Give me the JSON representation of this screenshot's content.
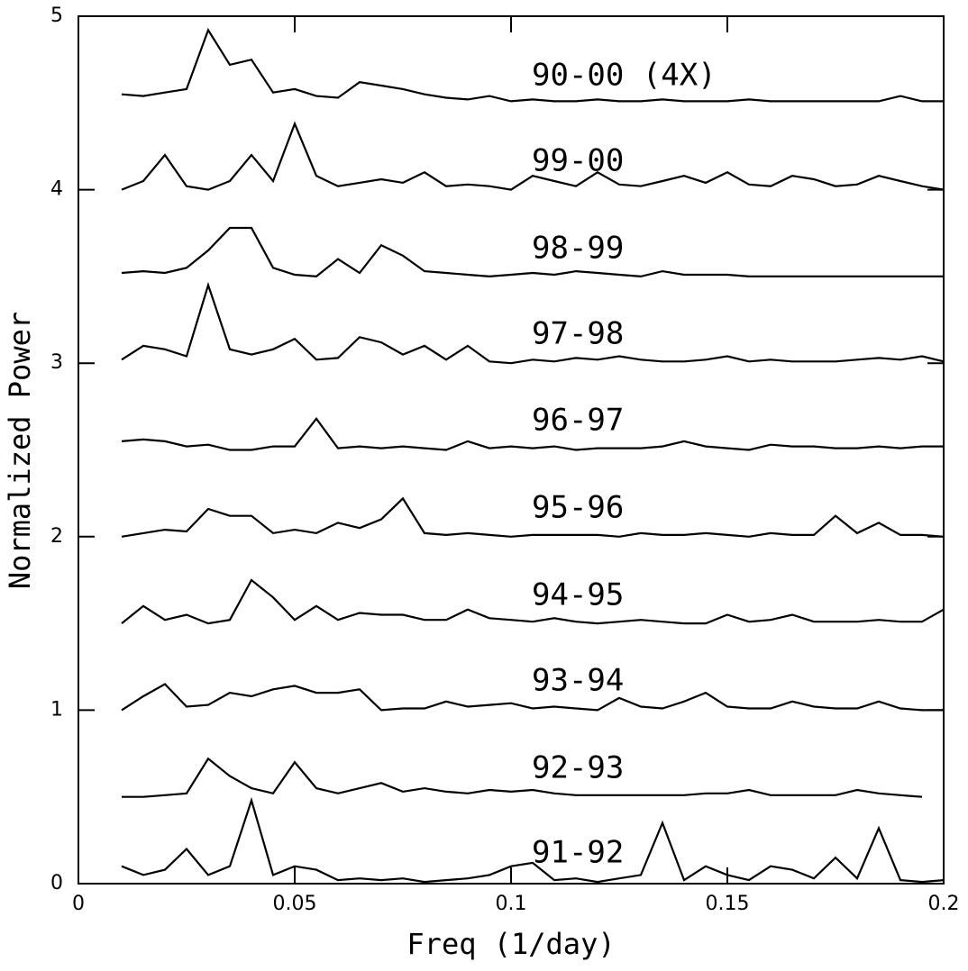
{
  "chart_data": {
    "type": "line",
    "xlabel": "Freq (1/day)",
    "ylabel": "Normalized Power",
    "xlim": [
      0,
      0.2
    ],
    "ylim": [
      0,
      5
    ],
    "xticks": [
      0,
      0.05,
      0.1,
      0.15,
      0.2
    ],
    "yticks": [
      0,
      1,
      2,
      3,
      4,
      5
    ],
    "x": [
      0.01,
      0.015,
      0.02,
      0.025,
      0.03,
      0.035,
      0.04,
      0.045,
      0.05,
      0.055,
      0.06,
      0.065,
      0.07,
      0.075,
      0.08,
      0.085,
      0.09,
      0.095,
      0.1,
      0.105,
      0.11,
      0.115,
      0.12,
      0.125,
      0.13,
      0.135,
      0.14,
      0.145,
      0.15,
      0.155,
      0.16,
      0.165,
      0.17,
      0.175,
      0.18,
      0.185,
      0.19,
      0.195,
      0.2
    ],
    "series": [
      {
        "name": "90-00 (4X)",
        "color": "#000000",
        "values": [
          4.55,
          4.54,
          4.56,
          4.58,
          4.92,
          4.72,
          4.75,
          4.56,
          4.58,
          4.54,
          4.53,
          4.62,
          4.6,
          4.58,
          4.55,
          4.53,
          4.52,
          4.54,
          4.51,
          4.52,
          4.51,
          4.51,
          4.52,
          4.51,
          4.51,
          4.52,
          4.51,
          4.51,
          4.51,
          4.52,
          4.51,
          4.51,
          4.51,
          4.51,
          4.51,
          4.51,
          4.54,
          4.51,
          4.51
        ]
      },
      {
        "name": "99-00",
        "color": "#000000",
        "values": [
          4.0,
          4.05,
          4.2,
          4.02,
          4.0,
          4.05,
          4.2,
          4.05,
          4.38,
          4.08,
          4.02,
          4.04,
          4.06,
          4.04,
          4.1,
          4.02,
          4.03,
          4.02,
          4.0,
          4.08,
          4.05,
          4.02,
          4.1,
          4.03,
          4.02,
          4.05,
          4.08,
          4.04,
          4.1,
          4.03,
          4.02,
          4.08,
          4.06,
          4.02,
          4.03,
          4.08,
          4.05,
          4.02,
          4.0
        ]
      },
      {
        "name": "98-99",
        "color": "#000000",
        "values": [
          3.52,
          3.53,
          3.52,
          3.55,
          3.65,
          3.78,
          3.78,
          3.55,
          3.51,
          3.5,
          3.6,
          3.52,
          3.68,
          3.62,
          3.53,
          3.52,
          3.51,
          3.5,
          3.51,
          3.52,
          3.51,
          3.53,
          3.52,
          3.51,
          3.5,
          3.53,
          3.51,
          3.51,
          3.51,
          3.5,
          3.5,
          3.5,
          3.5,
          3.5,
          3.5,
          3.5,
          3.5,
          3.5,
          3.5
        ]
      },
      {
        "name": "97-98",
        "color": "#000000",
        "values": [
          3.02,
          3.1,
          3.08,
          3.04,
          3.45,
          3.08,
          3.05,
          3.08,
          3.14,
          3.02,
          3.03,
          3.15,
          3.12,
          3.05,
          3.1,
          3.02,
          3.1,
          3.01,
          3.0,
          3.02,
          3.01,
          3.03,
          3.02,
          3.04,
          3.02,
          3.01,
          3.01,
          3.02,
          3.04,
          3.01,
          3.02,
          3.01,
          3.01,
          3.01,
          3.02,
          3.03,
          3.02,
          3.04,
          3.01
        ]
      },
      {
        "name": "96-97",
        "color": "#000000",
        "values": [
          2.55,
          2.56,
          2.55,
          2.52,
          2.53,
          2.5,
          2.5,
          2.52,
          2.52,
          2.68,
          2.51,
          2.52,
          2.51,
          2.52,
          2.51,
          2.5,
          2.55,
          2.51,
          2.52,
          2.51,
          2.52,
          2.5,
          2.51,
          2.51,
          2.51,
          2.52,
          2.55,
          2.52,
          2.51,
          2.5,
          2.53,
          2.52,
          2.52,
          2.51,
          2.51,
          2.52,
          2.51,
          2.52,
          2.52
        ]
      },
      {
        "name": "95-96",
        "color": "#000000",
        "values": [
          2.0,
          2.02,
          2.04,
          2.03,
          2.16,
          2.12,
          2.12,
          2.02,
          2.04,
          2.02,
          2.08,
          2.05,
          2.1,
          2.22,
          2.02,
          2.01,
          2.02,
          2.01,
          2.0,
          2.01,
          2.01,
          2.01,
          2.01,
          2.0,
          2.02,
          2.01,
          2.01,
          2.02,
          2.01,
          2.0,
          2.02,
          2.01,
          2.01,
          2.12,
          2.02,
          2.08,
          2.01,
          2.01,
          2.0
        ]
      },
      {
        "name": "94-95",
        "color": "#000000",
        "values": [
          1.5,
          1.6,
          1.52,
          1.55,
          1.5,
          1.52,
          1.75,
          1.65,
          1.52,
          1.6,
          1.52,
          1.56,
          1.55,
          1.55,
          1.52,
          1.52,
          1.58,
          1.53,
          1.52,
          1.51,
          1.53,
          1.51,
          1.5,
          1.51,
          1.52,
          1.51,
          1.5,
          1.5,
          1.55,
          1.51,
          1.52,
          1.55,
          1.51,
          1.51,
          1.51,
          1.52,
          1.51,
          1.51,
          1.58
        ]
      },
      {
        "name": "93-94",
        "color": "#000000",
        "values": [
          1.0,
          1.08,
          1.15,
          1.02,
          1.03,
          1.1,
          1.08,
          1.12,
          1.14,
          1.1,
          1.1,
          1.12,
          1.0,
          1.01,
          1.01,
          1.05,
          1.02,
          1.03,
          1.04,
          1.01,
          1.02,
          1.01,
          1.0,
          1.07,
          1.02,
          1.01,
          1.05,
          1.1,
          1.02,
          1.01,
          1.01,
          1.05,
          1.02,
          1.01,
          1.01,
          1.05,
          1.01,
          1.0,
          1.0
        ]
      },
      {
        "name": "92-93",
        "color": "#000000",
        "values": [
          0.5,
          0.5,
          0.51,
          0.52,
          0.72,
          0.62,
          0.55,
          0.52,
          0.7,
          0.55,
          0.52,
          0.55,
          0.58,
          0.53,
          0.55,
          0.53,
          0.52,
          0.54,
          0.53,
          0.54,
          0.52,
          0.51,
          0.51,
          0.51,
          0.51,
          0.51,
          0.51,
          0.52,
          0.52,
          0.54,
          0.51,
          0.51,
          0.51,
          0.51,
          0.54,
          0.52,
          0.51,
          0.5,
          null
        ]
      },
      {
        "name": "91-92",
        "color": "#000000",
        "values": [
          0.1,
          0.05,
          0.08,
          0.2,
          0.05,
          0.1,
          0.48,
          0.05,
          0.1,
          0.08,
          0.02,
          0.03,
          0.02,
          0.03,
          0.01,
          0.02,
          0.03,
          0.05,
          0.1,
          0.12,
          0.02,
          0.03,
          0.01,
          0.03,
          0.05,
          0.35,
          0.02,
          0.1,
          0.05,
          0.02,
          0.1,
          0.08,
          0.03,
          0.15,
          0.03,
          0.32,
          0.02,
          0.01,
          0.02
        ]
      }
    ]
  }
}
